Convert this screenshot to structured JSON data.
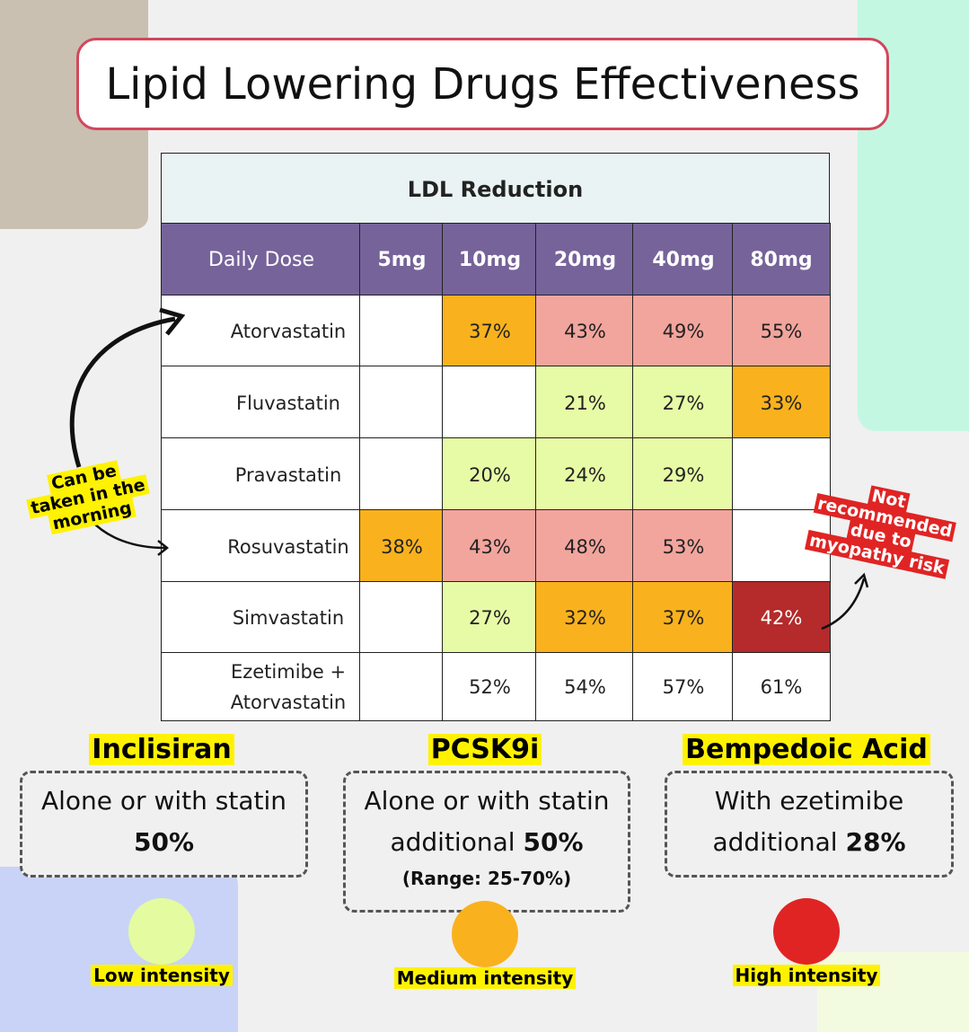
{
  "title": "Lipid Lowering Drugs Effectiveness",
  "table": {
    "caption": "LDL Reduction",
    "header": [
      "Daily Dose",
      "5mg",
      "10mg",
      "20mg",
      "40mg",
      "80mg"
    ],
    "rows": [
      {
        "drug": "Atorvastatin",
        "cells": [
          null,
          "37%",
          "43%",
          "49%",
          "55%"
        ],
        "colors": [
          null,
          "#f9b21d",
          "#f2a59d",
          "#f2a59d",
          "#f2a59d"
        ]
      },
      {
        "drug": "Fluvastatin",
        "cells": [
          null,
          null,
          "21%",
          "27%",
          "33%"
        ],
        "colors": [
          null,
          null,
          "#e7fba6",
          "#e7fba6",
          "#f9b21d"
        ]
      },
      {
        "drug": "Pravastatin",
        "cells": [
          null,
          "20%",
          "24%",
          "29%",
          null
        ],
        "colors": [
          null,
          "#e7fba6",
          "#e7fba6",
          "#e7fba6",
          null
        ]
      },
      {
        "drug": "Rosuvastatin",
        "cells": [
          "38%",
          "43%",
          "48%",
          "53%",
          null
        ],
        "colors": [
          "#f9b21d",
          "#f2a59d",
          "#f2a59d",
          "#f2a59d",
          null
        ]
      },
      {
        "drug": "Simvastatin",
        "cells": [
          null,
          "27%",
          "32%",
          "37%",
          "42%"
        ],
        "colors": [
          null,
          "#e7fba6",
          "#f9b21d",
          "#f9b21d",
          "#b52a2a"
        ]
      },
      {
        "drug": "Ezetimibe + Atorvastatin",
        "cells": [
          null,
          "52%",
          "54%",
          "57%",
          "61%"
        ],
        "colors": [
          null,
          null,
          null,
          null,
          null
        ]
      }
    ]
  },
  "annotations": {
    "morning": [
      "Can be",
      "taken in the",
      "morning"
    ],
    "myopathy": [
      "Not",
      "recommended",
      "due to",
      "myopathy risk"
    ]
  },
  "boxes": [
    {
      "title": "Inclisiran",
      "line1": "Alone or with statin",
      "prefix": null,
      "value": "50%",
      "note": null
    },
    {
      "title": "PCSK9i",
      "line1": "Alone or with statin",
      "prefix": "additional",
      "value": "50%",
      "note": "(Range: 25-70%)"
    },
    {
      "title": "Bempedoic Acid",
      "line1": "With ezetimibe",
      "prefix": "additional",
      "value": "28%",
      "note": null
    }
  ],
  "legend": [
    {
      "label": "Low intensity",
      "color": "#e4fba0"
    },
    {
      "label": "Medium intensity",
      "color": "#f9b21d"
    },
    {
      "label": "High intensity",
      "color": "#e02424"
    }
  ]
}
